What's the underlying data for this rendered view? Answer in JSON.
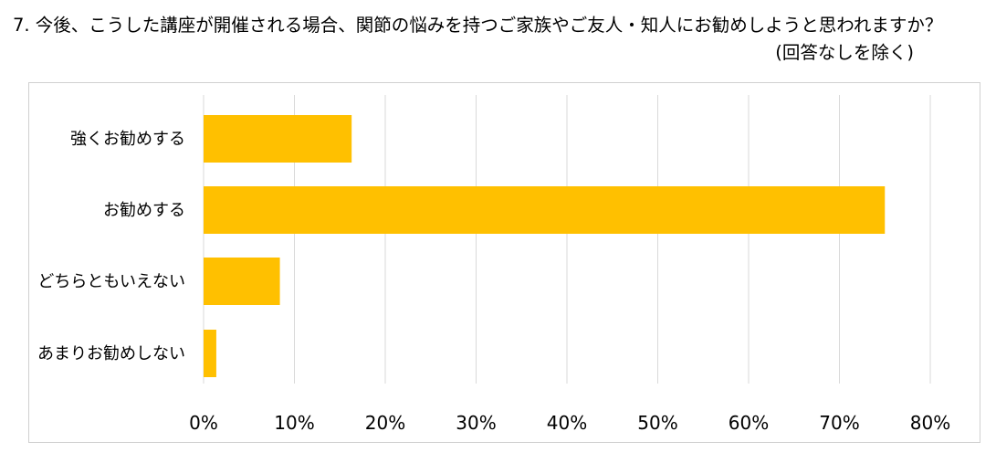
{
  "question": {
    "text": "7. 今後、こうした講座が開催される場合、関節の悩みを持つご家族やご友人・知人にお勧めしようと思われますか？",
    "note": "(回答なしを除く)"
  },
  "chart_data": {
    "type": "bar",
    "orientation": "horizontal",
    "categories": [
      "強くお勧めする",
      "お勧めする",
      "どちらともいえない",
      "あまりお勧めしない"
    ],
    "values": [
      16.3,
      75.0,
      8.4,
      1.4
    ],
    "unit": "%",
    "xlim": [
      0,
      80
    ],
    "xticks": [
      "0%",
      "10%",
      "20%",
      "30%",
      "40%",
      "50%",
      "60%",
      "70%",
      "80%"
    ],
    "grid": true,
    "legend": "none",
    "bar_color": "#FFC000"
  }
}
